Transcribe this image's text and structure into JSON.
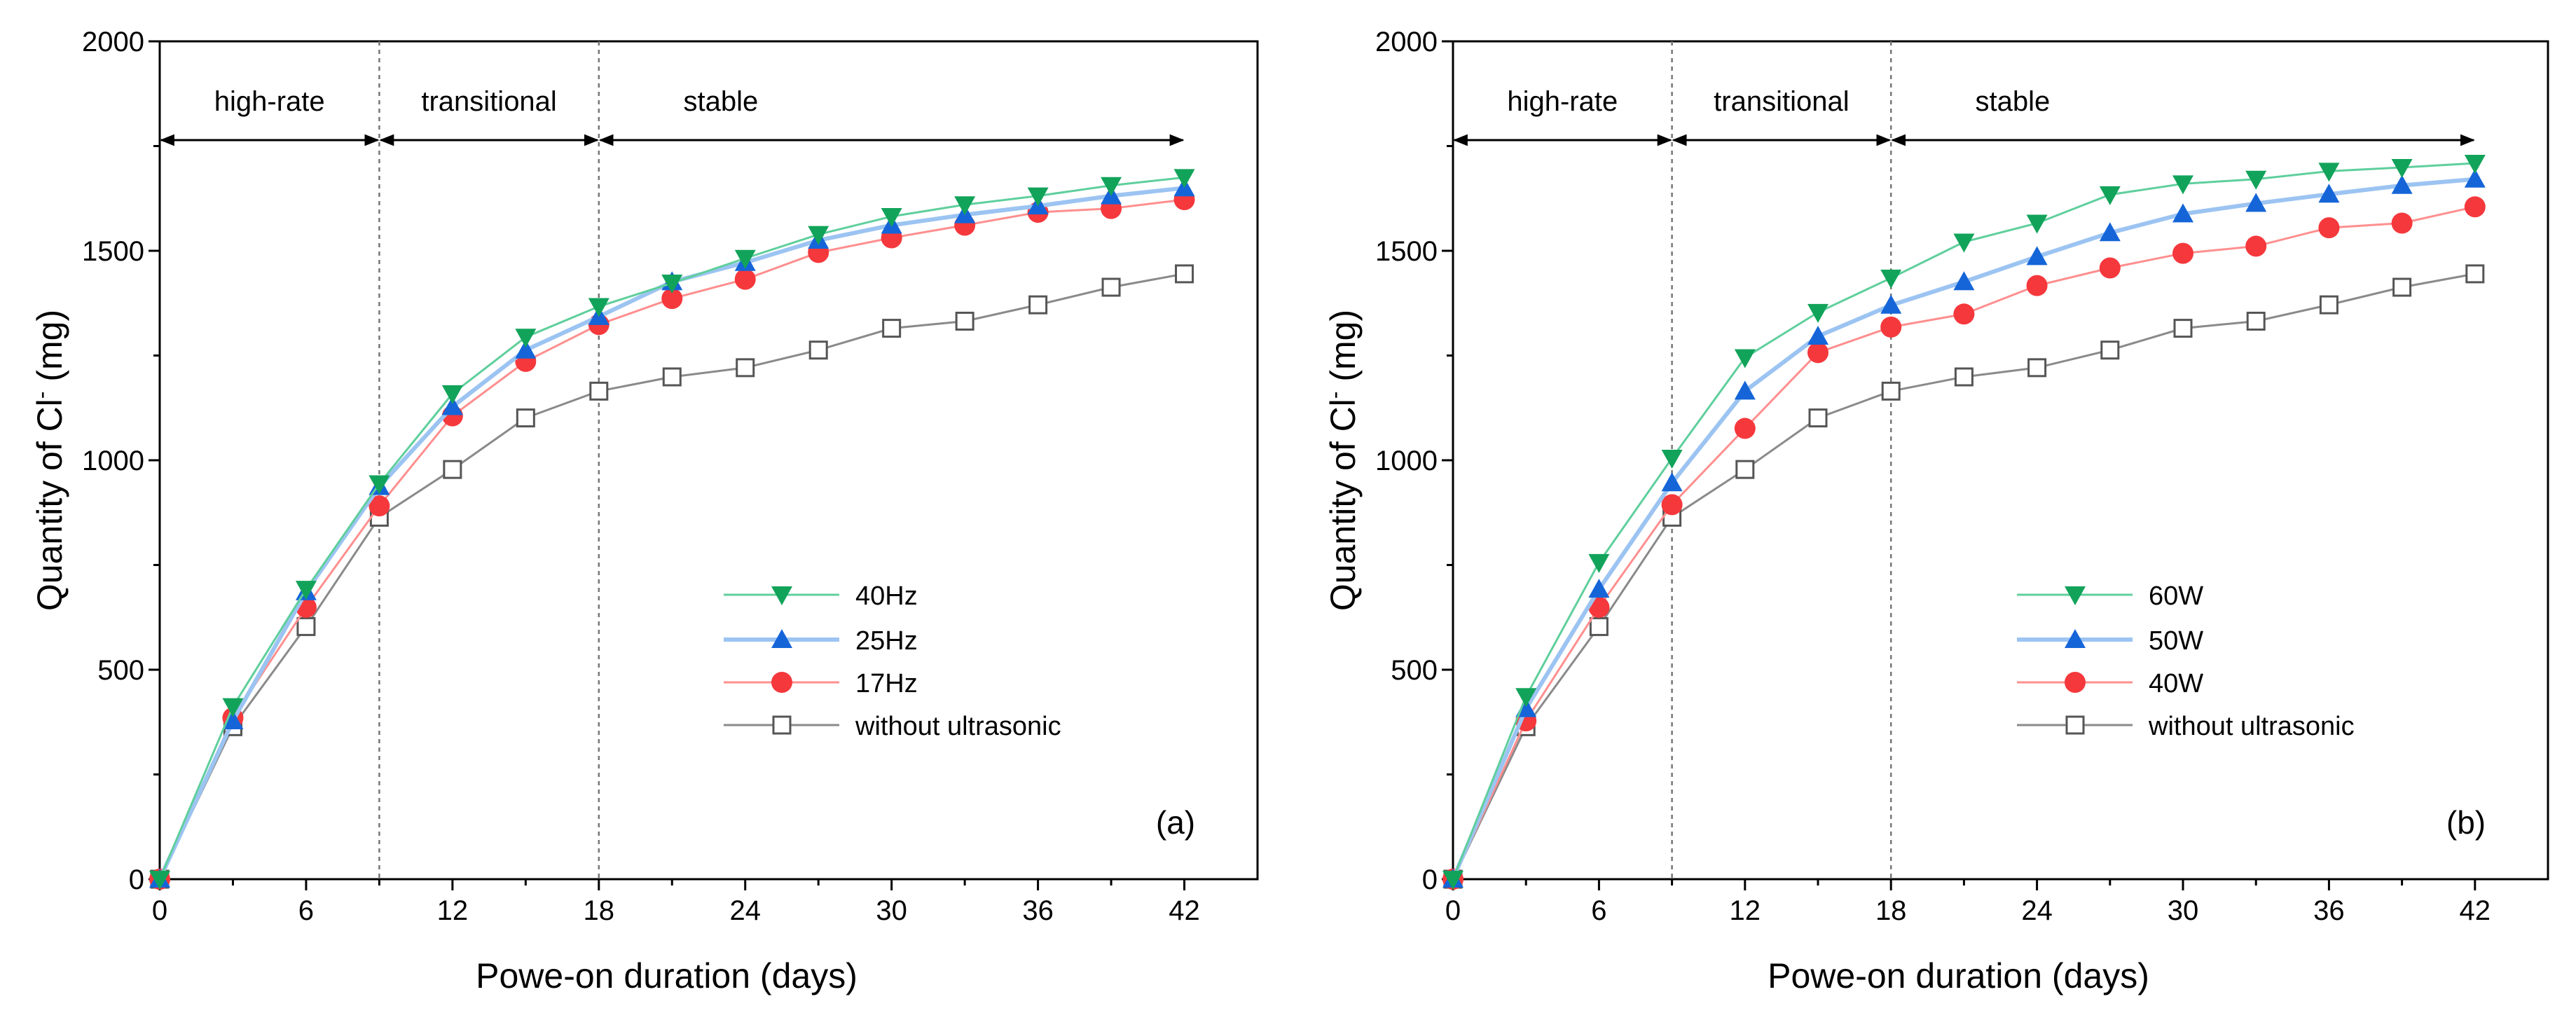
{
  "chart_data": [
    {
      "type": "line",
      "panel_label": "(a)",
      "xlabel": "Powe-on duration (days)",
      "ylabel": "Quantity of Cl",
      "ylabel_sup": "-",
      "ylabel_unit": " (mg)",
      "xlim": [
        0,
        45
      ],
      "ylim": [
        0,
        2000
      ],
      "xticks": [
        0,
        6,
        12,
        18,
        24,
        30,
        36,
        42
      ],
      "yticks": [
        0,
        500,
        1000,
        1500,
        2000
      ],
      "grid": false,
      "legend_placement": "center-right",
      "phases": [
        {
          "label": "high-rate",
          "from": 0,
          "to": 9
        },
        {
          "label": "transitional",
          "from": 9,
          "to": 18
        },
        {
          "label": "stable",
          "from": 18,
          "to": 42
        }
      ],
      "x": [
        0,
        3,
        6,
        9,
        12,
        15,
        18,
        21,
        24,
        27,
        30,
        33,
        36,
        39,
        42
      ],
      "series": [
        {
          "name": "40Hz",
          "marker": "triangle-down",
          "color": "#12a35a",
          "line_color": "#5fcf9c",
          "values": [
            0,
            412,
            692,
            944,
            1159,
            1294,
            1367,
            1423,
            1482,
            1539,
            1582,
            1610,
            1631,
            1656,
            1675
          ]
        },
        {
          "name": "25Hz",
          "marker": "triangle-up",
          "color": "#1565d8",
          "line_color": "#9cc4f2",
          "values": [
            0,
            378,
            686,
            937,
            1128,
            1263,
            1343,
            1426,
            1472,
            1525,
            1561,
            1586,
            1607,
            1631,
            1650
          ]
        },
        {
          "name": "17Hz",
          "marker": "circle",
          "color": "#f5383c",
          "line_color": "#ff8f8f",
          "values": [
            0,
            385,
            649,
            891,
            1106,
            1236,
            1324,
            1386,
            1432,
            1496,
            1531,
            1561,
            1592,
            1601,
            1622
          ]
        },
        {
          "name": "without ultrasonic",
          "marker": "square-open",
          "color": "#555555",
          "line_color": "#8a8a8a",
          "values": [
            0,
            364,
            603,
            864,
            978,
            1101,
            1165,
            1199,
            1221,
            1263,
            1315,
            1332,
            1371,
            1413,
            1445
          ]
        }
      ]
    },
    {
      "type": "line",
      "panel_label": "(b)",
      "xlabel": "Powe-on duration (days)",
      "ylabel": "Quantity of Cl",
      "ylabel_sup": "-",
      "ylabel_unit": " (mg)",
      "xlim": [
        0,
        45
      ],
      "ylim": [
        0,
        2000
      ],
      "xticks": [
        0,
        6,
        12,
        18,
        24,
        30,
        36,
        42
      ],
      "yticks": [
        0,
        500,
        1000,
        1500,
        2000
      ],
      "grid": false,
      "legend_placement": "center-right",
      "phases": [
        {
          "label": "high-rate",
          "from": 0,
          "to": 9
        },
        {
          "label": "transitional",
          "from": 9,
          "to": 18
        },
        {
          "label": "stable",
          "from": 18,
          "to": 42
        }
      ],
      "x": [
        0,
        3,
        6,
        9,
        12,
        15,
        18,
        21,
        24,
        27,
        30,
        33,
        36,
        39,
        42
      ],
      "series": [
        {
          "name": "60W",
          "marker": "triangle-down",
          "color": "#12a35a",
          "line_color": "#5fcf9c",
          "values": [
            0,
            436,
            756,
            1005,
            1245,
            1353,
            1435,
            1521,
            1566,
            1634,
            1660,
            1671,
            1690,
            1699,
            1709
          ]
        },
        {
          "name": "50W",
          "marker": "triangle-up",
          "color": "#1565d8",
          "line_color": "#9cc4f2",
          "values": [
            0,
            407,
            692,
            946,
            1165,
            1296,
            1370,
            1426,
            1486,
            1543,
            1588,
            1613,
            1635,
            1656,
            1671
          ]
        },
        {
          "name": "40W",
          "marker": "circle",
          "color": "#f5383c",
          "line_color": "#ff8f8f",
          "values": [
            0,
            378,
            649,
            894,
            1076,
            1257,
            1318,
            1349,
            1417,
            1459,
            1494,
            1511,
            1555,
            1566,
            1605
          ]
        },
        {
          "name": "without ultrasonic",
          "marker": "square-open",
          "color": "#555555",
          "line_color": "#8a8a8a",
          "values": [
            0,
            364,
            603,
            864,
            978,
            1101,
            1165,
            1199,
            1221,
            1263,
            1315,
            1332,
            1371,
            1413,
            1445
          ]
        }
      ]
    }
  ]
}
